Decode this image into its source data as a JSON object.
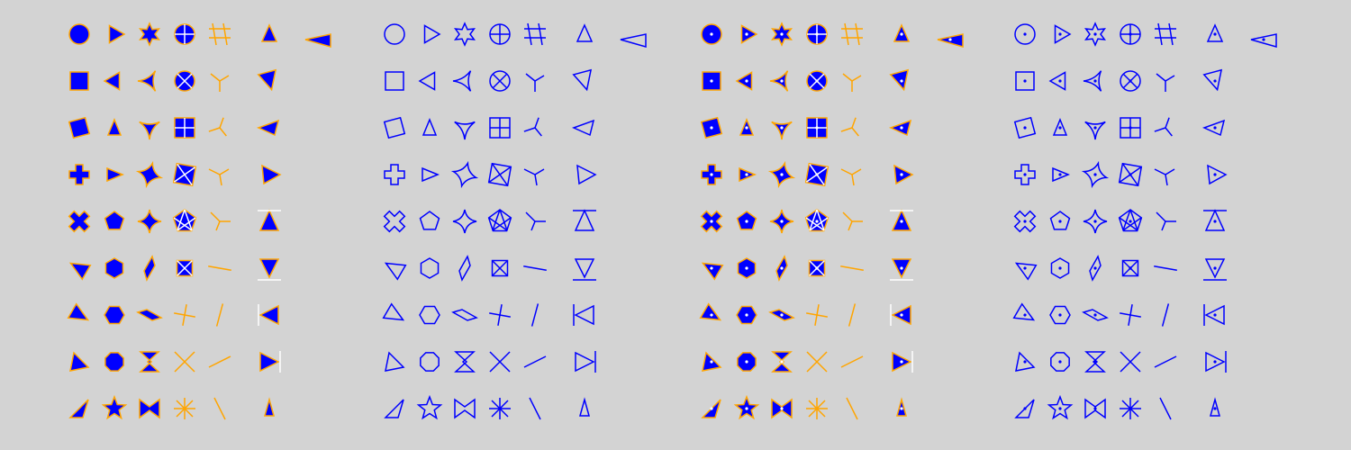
{
  "colors": {
    "background": "#d3d3d3",
    "marker_face": "#0000ff",
    "marker_edge": "#ffa500",
    "outline": "#0000ff"
  },
  "panels": [
    {
      "style": "filled",
      "center_dot": false
    },
    {
      "style": "outline",
      "center_dot": false
    },
    {
      "style": "filled",
      "center_dot": true
    },
    {
      "style": "outline",
      "center_dot": true
    }
  ],
  "marker_grid": [
    [
      "circle",
      "square",
      "diamond",
      "plus-filled",
      "x-filled",
      "triangle-left",
      "triangle-right",
      "triangle-up-left",
      "triangle-up-right"
    ],
    [
      "triangle-right-rot",
      "triangle-down-left",
      "triangle-up-small",
      "triangle-right-small",
      "pentagon",
      "hexagon",
      "hexagon-alt",
      "octagon",
      "star"
    ],
    [
      "star6",
      "tri-star-left",
      "tri-star-down",
      "star4-rot",
      "star4",
      "thin-diamond",
      "wide-diamond",
      "bowtie-vertical",
      "bowtie-horizontal"
    ],
    [
      "circle-plus",
      "circle-x",
      "square-plus",
      "square-x",
      "pentagon-x",
      "diamond-plus",
      "plus-line",
      "x-line",
      "asterisk"
    ],
    [
      "hash-open",
      "tri-down",
      "tri-up",
      "tri-left",
      "tri-right",
      "hline",
      "vline-tilt",
      "slash",
      "backslash"
    ],
    [
      "caret-up",
      "caret-down",
      "caret-left",
      "caret-right",
      "caret-up-base",
      "caret-down-base",
      "caret-left-base",
      "caret-right-base",
      "caret-small"
    ],
    [
      "caret-wide-left"
    ]
  ]
}
